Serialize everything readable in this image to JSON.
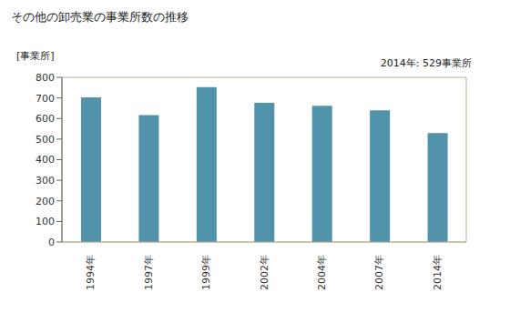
{
  "chart_data": {
    "type": "bar",
    "title": "その他の卸売業の事業所数の推移",
    "y_label": "[事業所]",
    "annotation": "2014年: 529事業所",
    "categories": [
      "1994年",
      "1997年",
      "1999年",
      "2002年",
      "2004年",
      "2007年",
      "2014年"
    ],
    "values": [
      703,
      617,
      752,
      676,
      662,
      640,
      529
    ],
    "color": "#5093ab",
    "ylim": [
      0,
      800
    ],
    "yticks": [
      0,
      100,
      200,
      300,
      400,
      500,
      600,
      700,
      800
    ],
    "grid": false
  }
}
